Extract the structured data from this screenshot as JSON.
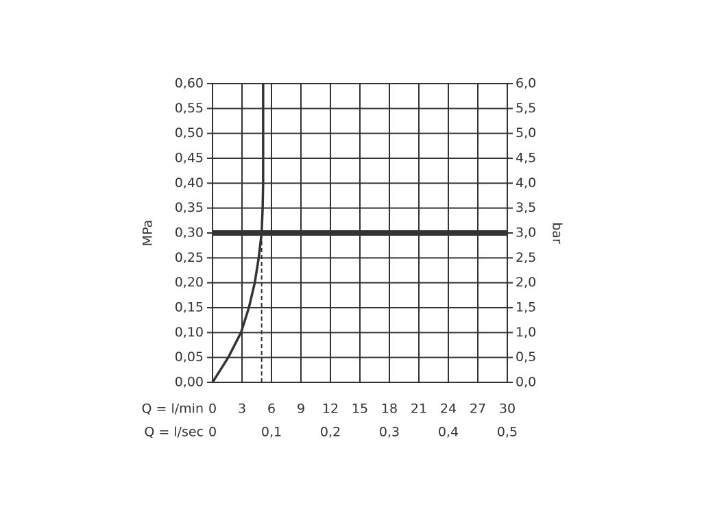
{
  "chart_data": {
    "type": "line",
    "x_label": "Q = l/min",
    "x2_label": "Q = l/sec",
    "y_label": "MPa",
    "y2_label": "bar",
    "xlim": [
      0,
      30
    ],
    "xticks": [
      0,
      3,
      6,
      9,
      12,
      15,
      18,
      21,
      24,
      27,
      30
    ],
    "x2lim": [
      0,
      0.5
    ],
    "x2ticks": [
      0,
      {
        "value": 0.1,
        "label": "0,1"
      },
      {
        "value": 0.2,
        "label": "0,2"
      },
      {
        "value": 0.3,
        "label": "0,3"
      },
      {
        "value": 0.4,
        "label": "0,4"
      },
      {
        "value": 0.5,
        "label": "0,5"
      }
    ],
    "ylim": [
      0,
      0.6
    ],
    "yticks": [
      {
        "value": 0,
        "label": "0,00"
      },
      {
        "value": 0.05,
        "label": "0,05"
      },
      {
        "value": 0.1,
        "label": "0,10"
      },
      {
        "value": 0.15,
        "label": "0,15"
      },
      {
        "value": 0.2,
        "label": "0,20"
      },
      {
        "value": 0.25,
        "label": "0,25"
      },
      {
        "value": 0.3,
        "label": "0,30"
      },
      {
        "value": 0.35,
        "label": "0,35"
      },
      {
        "value": 0.4,
        "label": "0,40"
      },
      {
        "value": 0.45,
        "label": "0,45"
      },
      {
        "value": 0.5,
        "label": "0,50"
      },
      {
        "value": 0.55,
        "label": "0,55"
      },
      {
        "value": 0.6,
        "label": "0,60"
      }
    ],
    "y2lim": [
      0,
      6
    ],
    "y2ticks": [
      {
        "value": 0,
        "label": "0,0"
      },
      {
        "value": 0.5,
        "label": "0,5"
      },
      {
        "value": 1,
        "label": "1,0"
      },
      {
        "value": 1.5,
        "label": "1,5"
      },
      {
        "value": 2,
        "label": "2,0"
      },
      {
        "value": 2.5,
        "label": "2,5"
      },
      {
        "value": 3,
        "label": "3,0"
      },
      {
        "value": 3.5,
        "label": "3,5"
      },
      {
        "value": 4,
        "label": "4,0"
      },
      {
        "value": 4.5,
        "label": "4,5"
      },
      {
        "value": 5,
        "label": "5,0"
      },
      {
        "value": 5.5,
        "label": "5,5"
      },
      {
        "value": 6,
        "label": "6,0"
      }
    ],
    "grid": true,
    "curve": {
      "color": "#333333",
      "x": [
        0,
        1.6,
        2.9,
        3.7,
        4.3,
        4.7,
        5.0,
        5.1,
        5.15,
        5.15
      ],
      "y": [
        0,
        0.05,
        0.1,
        0.15,
        0.2,
        0.25,
        0.3,
        0.35,
        0.4,
        0.6
      ]
    },
    "reference_pressure": 0.3,
    "reference_flow": 5.0
  }
}
